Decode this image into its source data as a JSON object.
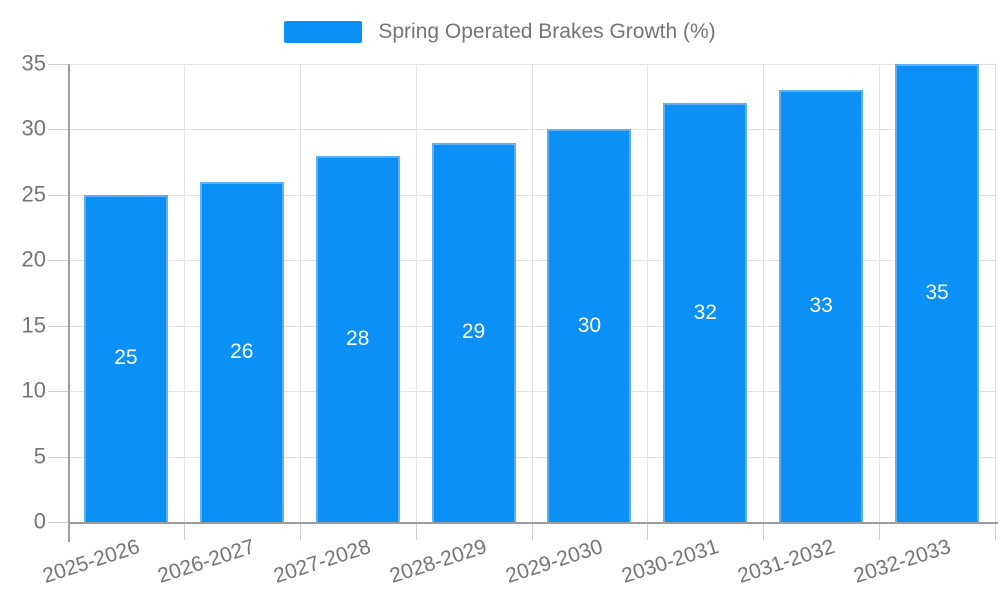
{
  "legend": {
    "label": "Spring Operated Brakes Growth (%)"
  },
  "colors": {
    "bar_fill": "#0b90f5",
    "bar_border": "#5cb0f3",
    "grid": "#e3e3e3",
    "tick": "#cfcfcf",
    "axis": "#9c9c9c",
    "axis_text": "#757575",
    "bar_label_text": "#ffffff"
  },
  "chart_data": {
    "type": "bar",
    "title": "Spring Operated Brakes Growth (%)",
    "categories": [
      "2025-2026",
      "2026-2027",
      "2027-2028",
      "2028-2029",
      "2029-2030",
      "2030-2031",
      "2031-2032",
      "2032-2033"
    ],
    "values": [
      25,
      26,
      28,
      29,
      30,
      32,
      33,
      35
    ],
    "yticks": [
      0,
      5,
      10,
      15,
      20,
      25,
      30,
      35
    ],
    "ylim": [
      0,
      35
    ],
    "xlabel": "",
    "ylabel": "",
    "grid": true,
    "legend_position": "top",
    "bar_labels_inside": true,
    "x_label_rotation_deg": -18
  }
}
